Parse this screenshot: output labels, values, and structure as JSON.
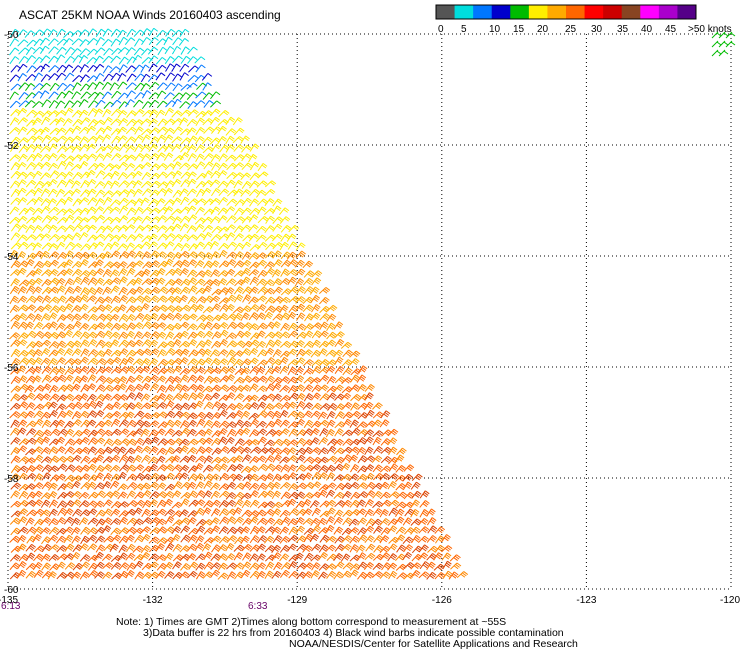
{
  "title": "ASCAT 25KM NOAA Winds 20160403 ascending",
  "legend": {
    "labels": [
      "0",
      "5",
      "10",
      "15",
      "20",
      "25",
      "30",
      "35",
      "40",
      "45",
      ">50 knots"
    ],
    "colors": [
      "#555555",
      "#00dddd",
      "#0077ff",
      "#0000cc",
      "#00bb00",
      "#ffee00",
      "#ffaa00",
      "#ff6600",
      "#ff0000",
      "#cc0000",
      "#884422",
      "#ff00ff",
      "#aa00cc",
      "#550088"
    ]
  },
  "notes": {
    "line1": "Note: 1) Times are GMT 2)Times along bottom correspond to measurement at ~55S",
    "line2": "3)Data buffer is 22 hrs from 20160403 4) Black wind barbs indicate possible contamination",
    "line3": "NOAA/NESDIS/Center for Satellite Applications and Research"
  },
  "chart_data": {
    "type": "wind-barb map",
    "title": "ASCAT 25KM NOAA Winds 20160403 ascending",
    "x_ticks": [
      "-135",
      "-132",
      "-129",
      "-126",
      "-123",
      "-120"
    ],
    "y_ticks": [
      "-50",
      "-52",
      "-54",
      "-56",
      "-58",
      "-60"
    ],
    "time_labels": [
      "6:13",
      "6:33"
    ],
    "xlim": [
      -135,
      -120
    ],
    "ylim": [
      -60,
      -50
    ],
    "grid": true,
    "speed_bins_knots": [
      0,
      5,
      10,
      15,
      20,
      25,
      30,
      35,
      40,
      45,
      50
    ],
    "swath_regions": [
      {
        "lat_range": [
          -50.0,
          -50.6
        ],
        "speed_knots": 5,
        "color": "#00dddd"
      },
      {
        "lat_range": [
          -50.6,
          -51.0
        ],
        "speed_knots": 12,
        "color": "#0000cc"
      },
      {
        "lat_range": [
          -51.0,
          -51.4
        ],
        "speed_knots": 17,
        "color": "#00bb00"
      },
      {
        "lat_range": [
          -51.4,
          -54.0
        ],
        "speed_knots": 22,
        "color": "#ffee00"
      },
      {
        "lat_range": [
          -54.0,
          -56.0
        ],
        "speed_knots": 28,
        "color": "#ffaa00"
      },
      {
        "lat_range": [
          -56.0,
          -60.0
        ],
        "speed_knots": 32,
        "color": "#ff6600"
      }
    ]
  }
}
